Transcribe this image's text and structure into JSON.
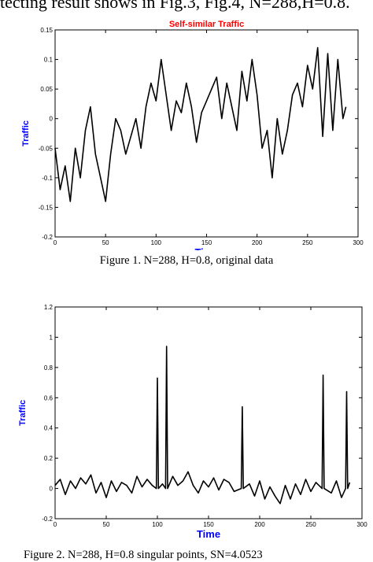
{
  "page": {
    "top_text": "tecting result shows in Fig.3, Fig.4, N=288,H=0.8.",
    "caption1": "Figure 1.     N=288, H=0.8, original data",
    "caption2": "Figure 2.    N=288, H=0.8 singular points, SN=4.0523 "
  },
  "colors": {
    "title": "#ff0000",
    "axis_label": "#0000ff",
    "line": "#000000"
  },
  "chart_data": [
    {
      "type": "line",
      "title": "Self-similar Traffic",
      "xlabel": "Time",
      "ylabel": "Traffic",
      "xlim": [
        0,
        300
      ],
      "ylim": [
        -0.2,
        0.15
      ],
      "xticks": [
        0,
        50,
        100,
        150,
        200,
        250,
        300
      ],
      "yticks": [
        -0.2,
        -0.15,
        -0.1,
        -0.05,
        0,
        0.05,
        0.1,
        0.15
      ],
      "ytick_labels": [
        "-0.2",
        "-0.15",
        "-0.1",
        "-0.05",
        "0",
        "0.05",
        "0.1",
        "0.15"
      ],
      "xtick_labels": [
        "0",
        "50",
        "100",
        "150",
        "200",
        "250",
        "300"
      ],
      "grid": false,
      "series": [
        {
          "x": [
            0,
            5,
            10,
            15,
            20,
            25,
            30,
            35,
            40,
            45,
            50,
            55,
            60,
            65,
            70,
            75,
            80,
            85,
            90,
            95,
            100,
            105,
            110,
            115,
            120,
            125,
            130,
            135,
            140,
            145,
            150,
            155,
            160,
            165,
            170,
            175,
            180,
            185,
            190,
            195,
            200,
            205,
            210,
            215,
            220,
            225,
            230,
            235,
            240,
            245,
            250,
            255,
            260,
            265,
            270,
            275,
            280,
            285,
            288
          ],
          "y": [
            -0.05,
            -0.12,
            -0.08,
            -0.14,
            -0.05,
            -0.1,
            -0.02,
            0.02,
            -0.06,
            -0.1,
            -0.14,
            -0.06,
            0.0,
            -0.02,
            -0.06,
            -0.03,
            0.0,
            -0.05,
            0.02,
            0.06,
            0.03,
            0.1,
            0.04,
            -0.02,
            0.03,
            0.01,
            0.06,
            0.02,
            -0.04,
            0.01,
            0.03,
            0.05,
            0.07,
            0.0,
            0.06,
            0.02,
            -0.02,
            0.08,
            0.03,
            0.1,
            0.04,
            -0.05,
            -0.02,
            -0.1,
            0.0,
            -0.06,
            -0.02,
            0.04,
            0.06,
            0.02,
            0.09,
            0.05,
            0.12,
            -0.03,
            0.11,
            -0.02,
            0.1,
            0.0,
            0.02
          ]
        }
      ]
    },
    {
      "type": "line",
      "title": "",
      "xlabel": "Time",
      "ylabel": "Traffic",
      "xlim": [
        0,
        300
      ],
      "ylim": [
        -0.2,
        1.2
      ],
      "xticks": [
        0,
        50,
        100,
        150,
        200,
        250,
        300
      ],
      "yticks": [
        -0.2,
        0,
        0.2,
        0.4,
        0.6,
        0.8,
        1,
        1.2
      ],
      "ytick_labels": [
        "-0.2",
        "0",
        "0.2",
        "0.4",
        "0.6",
        "0.8",
        "1",
        "1.2"
      ],
      "xtick_labels": [
        "0",
        "50",
        "100",
        "150",
        "200",
        "250",
        "300"
      ],
      "grid": false,
      "series": [
        {
          "x": [
            0,
            5,
            10,
            15,
            20,
            25,
            30,
            35,
            40,
            45,
            50,
            55,
            60,
            65,
            70,
            75,
            80,
            85,
            90,
            95,
            99,
            100,
            101,
            105,
            108,
            109,
            110,
            115,
            120,
            125,
            130,
            135,
            140,
            145,
            150,
            155,
            160,
            165,
            170,
            175,
            182,
            183,
            184,
            190,
            195,
            200,
            205,
            210,
            215,
            220,
            225,
            230,
            235,
            240,
            245,
            250,
            255,
            261,
            262,
            263,
            270,
            275,
            280,
            284,
            285,
            286,
            288
          ],
          "y": [
            0.02,
            0.06,
            -0.04,
            0.05,
            0.0,
            0.07,
            0.03,
            0.09,
            -0.03,
            0.04,
            -0.06,
            0.05,
            -0.02,
            0.04,
            0.02,
            -0.03,
            0.08,
            0.01,
            0.06,
            0.02,
            0.0,
            0.73,
            0.0,
            0.03,
            0.0,
            0.94,
            0.0,
            0.08,
            0.02,
            0.05,
            0.11,
            0.02,
            -0.03,
            0.05,
            0.01,
            0.07,
            -0.01,
            0.06,
            0.04,
            -0.02,
            0.0,
            0.54,
            0.0,
            0.03,
            -0.05,
            0.05,
            -0.07,
            0.01,
            -0.05,
            -0.1,
            0.02,
            -0.07,
            0.03,
            -0.04,
            0.06,
            -0.02,
            0.04,
            0.0,
            0.75,
            0.0,
            -0.03,
            0.05,
            -0.06,
            0.0,
            0.64,
            0.0,
            0.04
          ]
        }
      ]
    }
  ]
}
